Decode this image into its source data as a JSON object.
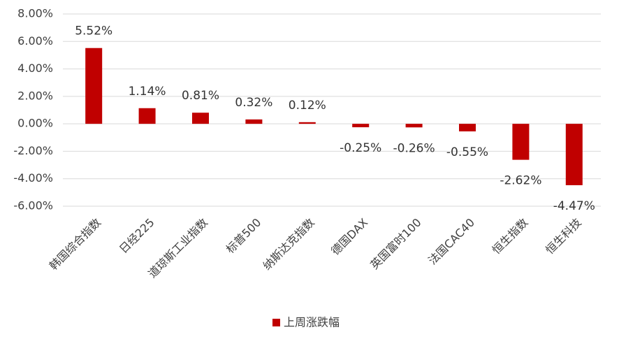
{
  "chart_data": {
    "type": "bar",
    "categories": [
      "韩国综合指数",
      "日经225",
      "道琼斯工业指数",
      "标普500",
      "纳斯达克指数",
      "德国DAX",
      "英国富时100",
      "法国CAC40",
      "恒生指数",
      "恒生科技"
    ],
    "series": [
      {
        "name": "上周涨跌幅",
        "color": "#c00000",
        "values": [
          5.52,
          1.14,
          0.81,
          0.32,
          0.12,
          -0.25,
          -0.26,
          -0.55,
          -2.62,
          -4.47
        ],
        "value_labels": [
          "5.52%",
          "1.14%",
          "0.81%",
          "0.32%",
          "0.12%",
          "-0.25%",
          "-0.26%",
          "-0.55%",
          "-2.62%",
          "-4.47%"
        ]
      }
    ],
    "ylim": [
      -6,
      8
    ],
    "yticks": [
      {
        "value": -6,
        "label": "-6.00%"
      },
      {
        "value": -4,
        "label": "-4.00%"
      },
      {
        "value": -2,
        "label": "-2.00%"
      },
      {
        "value": 0,
        "label": "0.00%"
      },
      {
        "value": 2,
        "label": "2.00%"
      },
      {
        "value": 4,
        "label": "4.00%"
      },
      {
        "value": 6,
        "label": "6.00%"
      },
      {
        "value": 8,
        "label": "8.00%"
      }
    ],
    "grid": true,
    "legend": "bottom"
  }
}
